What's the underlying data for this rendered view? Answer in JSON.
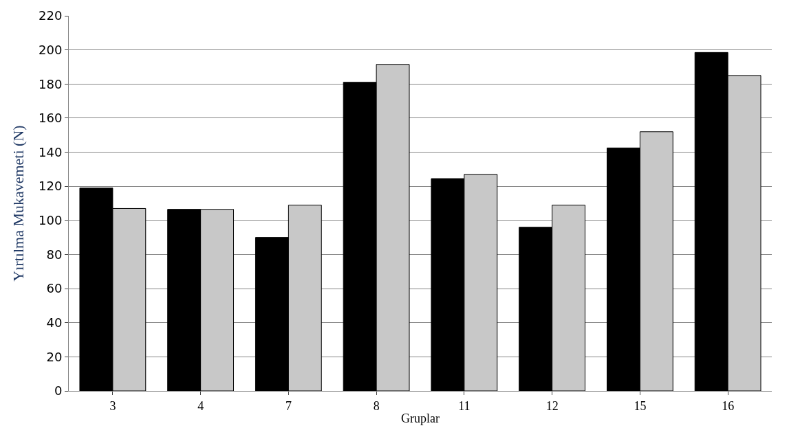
{
  "chart_data": {
    "type": "bar",
    "xlabel": "Gruplar",
    "ylabel": "Yırtılma Mukavemeti (N)",
    "categories": [
      "3",
      "4",
      "7",
      "8",
      "11",
      "12",
      "15",
      "16"
    ],
    "series": [
      {
        "color": "#000000",
        "values": [
          119,
          106.5,
          90,
          181,
          124.5,
          96,
          142.5,
          198.5
        ]
      },
      {
        "color": "#c8c8c8",
        "values": [
          107,
          106.5,
          109,
          191.5,
          127,
          109,
          152,
          185
        ]
      }
    ],
    "ylim": [
      0,
      220
    ],
    "yticks": [
      0,
      20,
      40,
      60,
      80,
      100,
      120,
      140,
      160,
      180,
      200,
      220
    ],
    "grid": "y"
  }
}
